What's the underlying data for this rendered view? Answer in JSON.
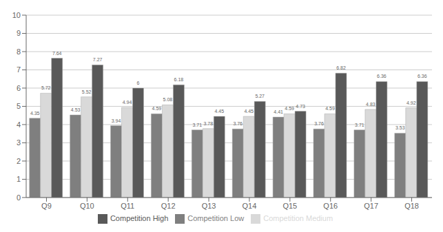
{
  "chart_data": {
    "type": "bar",
    "categories": [
      "Q9",
      "Q10",
      "Q11",
      "Q12",
      "Q13",
      "Q14",
      "Q15",
      "Q16",
      "Q17",
      "Q18"
    ],
    "series": [
      {
        "name": "Competition Low",
        "color": "#7f7f7f",
        "values": [
          4.35,
          4.53,
          3.94,
          4.59,
          3.71,
          3.76,
          4.41,
          3.76,
          3.71,
          3.53
        ]
      },
      {
        "name": "Competition Medium",
        "color": "#d9d9d9",
        "values": [
          5.72,
          5.52,
          4.94,
          5.08,
          3.78,
          4.45,
          4.59,
          4.59,
          4.83,
          4.92
        ]
      },
      {
        "name": "Competition High",
        "color": "#595959",
        "values": [
          7.64,
          7.27,
          6.0,
          6.18,
          4.45,
          5.27,
          4.73,
          6.82,
          6.36,
          6.36
        ]
      }
    ],
    "ylim": [
      0,
      10
    ],
    "yticks": [
      0,
      1,
      2,
      3,
      4,
      5,
      6,
      7,
      8,
      9,
      10
    ],
    "grid": true,
    "legend": "bottom",
    "data_labels": true
  }
}
